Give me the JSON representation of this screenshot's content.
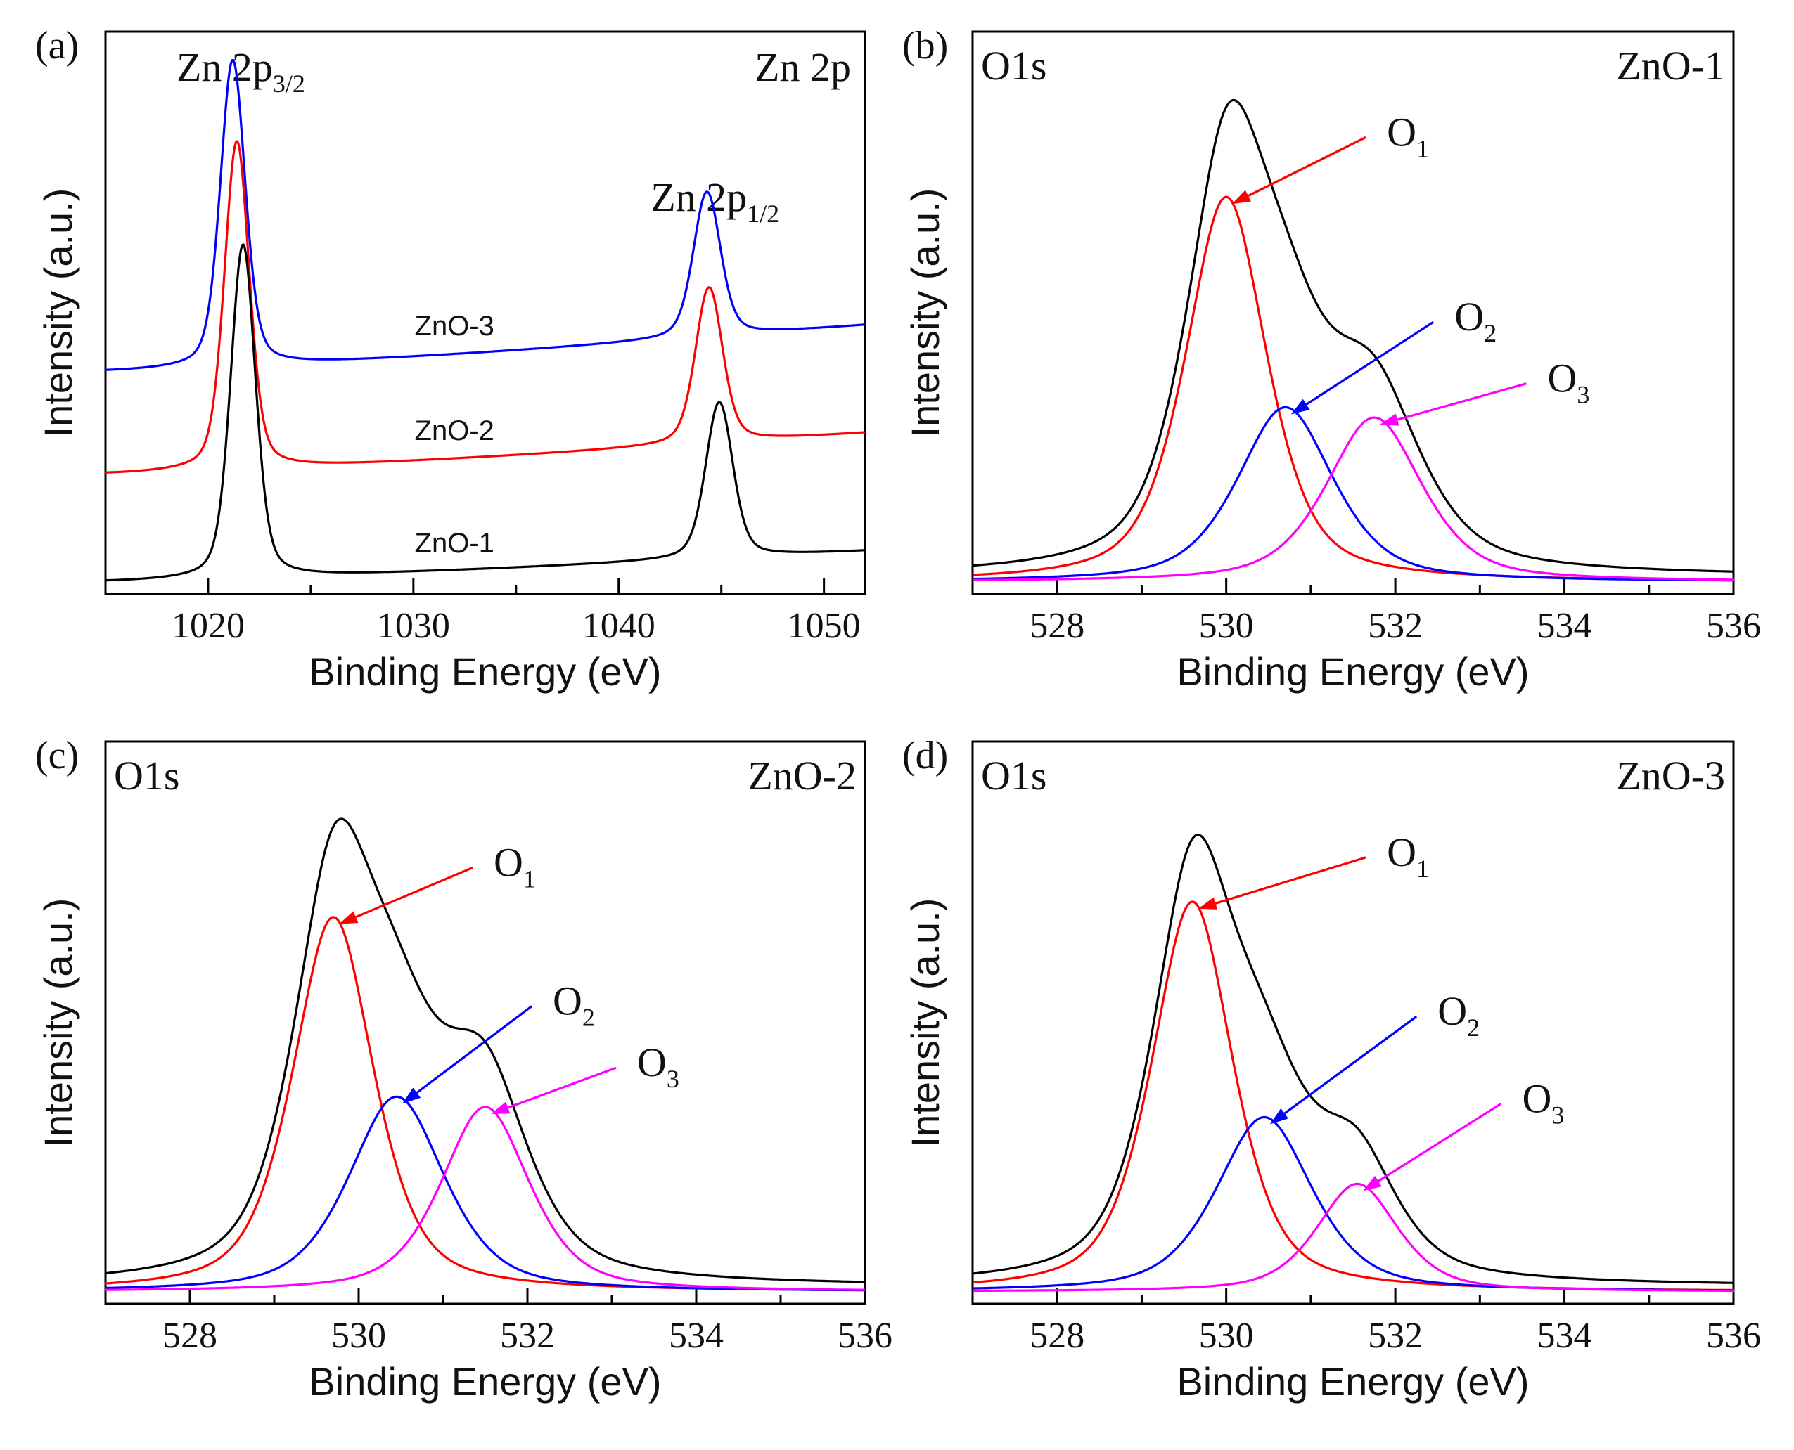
{
  "chart_data": [
    {
      "type": "line",
      "panel_label": "(a)",
      "title": "Zn 2p",
      "xlabel": "Binding Energy (eV)",
      "ylabel": "Intensity (a.u.)",
      "xlim": [
        1015,
        1052
      ],
      "ylim": [
        0,
        1
      ],
      "xticks": [
        "1020",
        "1030",
        "1040",
        "1050"
      ],
      "grid": false,
      "annotations": [
        {
          "text": "Zn 2p",
          "sub": "3/2",
          "x": 1021.2
        },
        {
          "text": "Zn 2p",
          "sub": "1/2",
          "x": 1044.3
        }
      ],
      "series": [
        {
          "name": "ZnO-3",
          "color": "#0000ff",
          "baseline_start": 0.42,
          "baseline_end": 0.51,
          "peak1_x": 1021.2,
          "peak1_h": 0.57,
          "peak2_x": 1044.3,
          "peak2_h": 0.27,
          "label_x": 1032.0
        },
        {
          "name": "ZnO-2",
          "color": "#ff0000",
          "baseline_start": 0.22,
          "baseline_end": 0.3,
          "peak1_x": 1021.4,
          "peak1_h": 0.61,
          "peak2_x": 1044.4,
          "peak2_h": 0.29,
          "label_x": 1032.0
        },
        {
          "name": "ZnO-1",
          "color": "#000000",
          "baseline_start": 0.01,
          "baseline_end": 0.07,
          "peak1_x": 1021.7,
          "peak1_h": 0.62,
          "peak2_x": 1044.9,
          "peak2_h": 0.29,
          "label_x": 1032.0
        }
      ]
    },
    {
      "type": "line",
      "panel_label": "(b)",
      "spectrum": "O1s",
      "sample": "ZnO-1",
      "xlabel": "Binding Energy (eV)",
      "ylabel": "Intensity (a.u.)",
      "xlim": [
        527,
        536
      ],
      "ylim": [
        0,
        1
      ],
      "xticks": [
        "528",
        "530",
        "532",
        "534",
        "536"
      ],
      "grid": false,
      "components": [
        {
          "name": "O",
          "sub": "1",
          "color": "#ff0000",
          "center": 530.0,
          "height": 0.75,
          "width": 0.55
        },
        {
          "name": "O",
          "sub": "2",
          "color": "#0000ff",
          "center": 530.7,
          "height": 0.34,
          "width": 0.65
        },
        {
          "name": "O",
          "sub": "3",
          "color": "#ff00ff",
          "center": 531.75,
          "height": 0.32,
          "width": 0.65
        }
      ],
      "baseline": 0.01,
      "label_positions": {
        "O1": [
          531.9,
          0.89
        ],
        "O2": [
          532.7,
          0.53
        ],
        "O3": [
          533.8,
          0.41
        ]
      }
    },
    {
      "type": "line",
      "panel_label": "(c)",
      "spectrum": "O1s",
      "sample": "ZnO-2",
      "xlabel": "Binding Energy (eV)",
      "ylabel": "Intensity (a.u.)",
      "xlim": [
        527,
        536
      ],
      "ylim": [
        0,
        1
      ],
      "xticks": [
        "528",
        "530",
        "532",
        "534",
        "536"
      ],
      "grid": false,
      "components": [
        {
          "name": "O",
          "sub": "1",
          "color": "#ff0000",
          "center": 529.7,
          "height": 0.73,
          "width": 0.55
        },
        {
          "name": "O",
          "sub": "2",
          "color": "#0000ff",
          "center": 530.45,
          "height": 0.38,
          "width": 0.65
        },
        {
          "name": "O",
          "sub": "3",
          "color": "#ff00ff",
          "center": 531.5,
          "height": 0.36,
          "width": 0.6
        }
      ],
      "baseline": 0.01,
      "label_positions": {
        "O1": [
          531.6,
          0.85
        ],
        "O2": [
          532.3,
          0.58
        ],
        "O3": [
          533.3,
          0.46
        ]
      }
    },
    {
      "type": "line",
      "panel_label": "(d)",
      "spectrum": "O1s",
      "sample": "ZnO-3",
      "xlabel": "Binding Energy (eV)",
      "ylabel": "Intensity (a.u.)",
      "xlim": [
        527,
        536
      ],
      "ylim": [
        0,
        1
      ],
      "xticks": [
        "528",
        "530",
        "532",
        "534",
        "536"
      ],
      "grid": false,
      "components": [
        {
          "name": "O",
          "sub": "1",
          "color": "#ff0000",
          "center": 529.6,
          "height": 0.76,
          "width": 0.55
        },
        {
          "name": "O",
          "sub": "2",
          "color": "#0000ff",
          "center": 530.45,
          "height": 0.34,
          "width": 0.65
        },
        {
          "name": "O",
          "sub": "3",
          "color": "#ff00ff",
          "center": 531.55,
          "height": 0.21,
          "width": 0.55
        }
      ],
      "baseline": 0.01,
      "label_positions": {
        "O1": [
          531.9,
          0.87
        ],
        "O2": [
          532.5,
          0.56
        ],
        "O3": [
          533.5,
          0.39
        ]
      }
    }
  ]
}
